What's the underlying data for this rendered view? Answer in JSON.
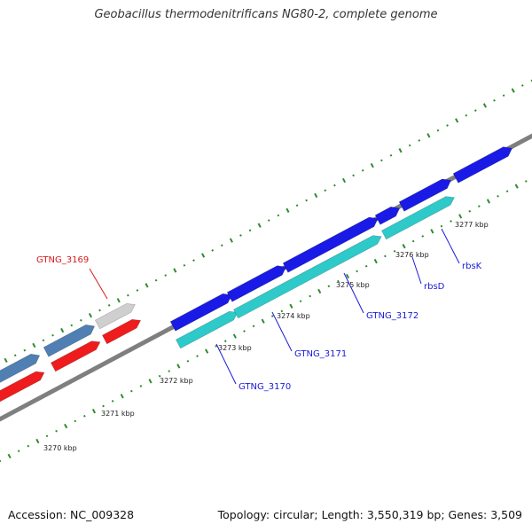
{
  "title": "Geobacillus thermodenitrificans NG80-2, complete genome",
  "footer": {
    "accession": "Accession: NC_009328",
    "summary": "Topology: circular; Length: 3,550,319 bp; Genes: 3,509"
  },
  "map": {
    "kbp_ticks": [
      "3270 kbp",
      "3271 kbp",
      "3272 kbp",
      "3273 kbp",
      "3274 kbp",
      "3275 kbp",
      "3276 kbp",
      "3277 kbp"
    ],
    "colors": {
      "backbone": "#7f7f7f",
      "tick": "#2e8b2e",
      "forward_strand": "#1a1ae6",
      "reverse_strand": "#2ec9c9",
      "steel": "#4f7fb3",
      "red": "#ee1c1c",
      "gray": "#cfcfcf"
    },
    "gene_labels": [
      {
        "name": "GTNG_3169",
        "color": "#d91a1a"
      },
      {
        "name": "GTNG_3170",
        "color": "#1a1ad9"
      },
      {
        "name": "GTNG_3171",
        "color": "#1a1ad9"
      },
      {
        "name": "GTNG_3172",
        "color": "#1a1ad9"
      },
      {
        "name": "rbsD",
        "color": "#1a1ad9"
      },
      {
        "name": "rbsK",
        "color": "#1a1ad9"
      }
    ]
  }
}
